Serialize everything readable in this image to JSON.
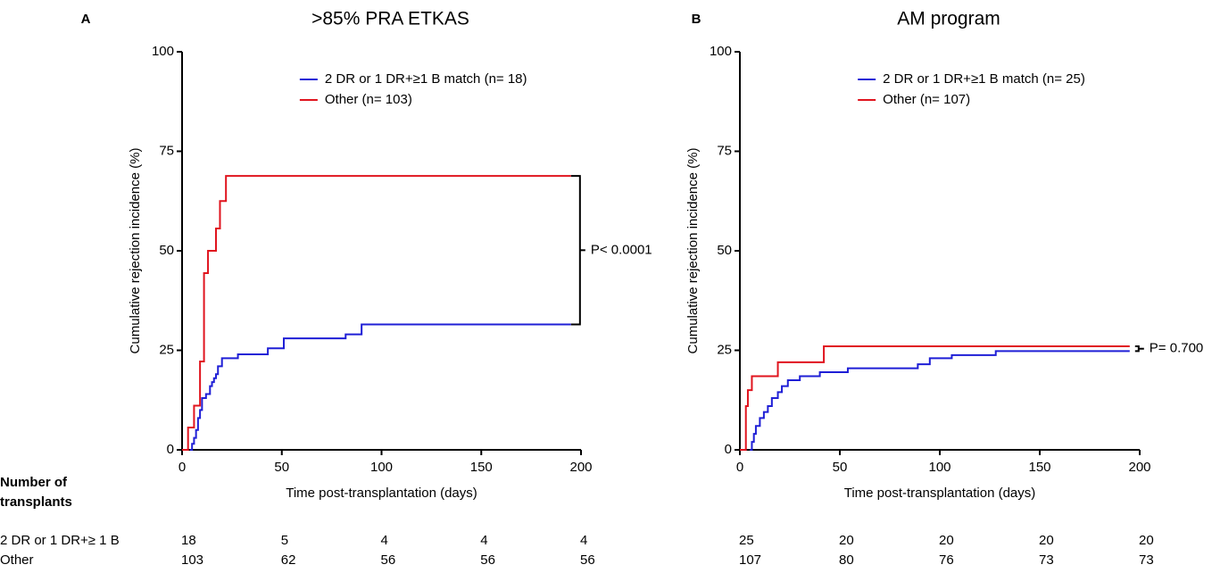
{
  "chart_data": [
    {
      "type": "line",
      "step": true,
      "panel": "A",
      "title": ">85% PRA ETKAS",
      "x_label": "Time post-transplantation (days)",
      "y_label": "Cumulative rejection incidence (%)",
      "xlim": [
        0,
        200
      ],
      "ylim": [
        0,
        100
      ],
      "xticks": [
        0,
        50,
        100,
        150,
        200
      ],
      "yticks": [
        0,
        25,
        50,
        75,
        100
      ],
      "legend": "upper-right",
      "series": [
        {
          "name": "2 DR or 1 DR+≥1 B match (n= 18)",
          "color": "#1f1fd6",
          "x": [
            4,
            5,
            6,
            7,
            8,
            9,
            10,
            12,
            14,
            15,
            16,
            17,
            18,
            20,
            28,
            43,
            51,
            82,
            90,
            195
          ],
          "values": [
            0,
            1.5,
            3,
            5,
            8,
            10,
            13,
            14,
            16,
            17,
            18,
            19,
            21,
            23,
            24,
            25.5,
            28,
            29,
            31.5,
            31.5
          ]
        },
        {
          "name": "Other (n= 103)",
          "color": "#e0141e",
          "x": [
            0,
            3,
            6,
            9,
            11,
            13,
            17,
            19,
            22,
            195
          ],
          "values": [
            0,
            5.6,
            11.1,
            22.2,
            44.4,
            50,
            55.6,
            62.5,
            68.8,
            68.8
          ]
        }
      ],
      "annotation": "P< 0.0001",
      "at_risk": [
        [
          18,
          5,
          4,
          4,
          4
        ],
        [
          103,
          62,
          56,
          56,
          56
        ]
      ]
    },
    {
      "type": "line",
      "step": true,
      "panel": "B",
      "title": "AM program",
      "x_label": "Time post-transplantation (days)",
      "y_label": "Cumulative rejection incidence (%)",
      "xlim": [
        0,
        200
      ],
      "ylim": [
        0,
        100
      ],
      "xticks": [
        0,
        50,
        100,
        150,
        200
      ],
      "yticks": [
        0,
        25,
        50,
        75,
        100
      ],
      "legend": "upper-right",
      "series": [
        {
          "name": "2 DR or 1 DR+≥1 B match (n= 25)",
          "color": "#1f1fd6",
          "x": [
            5,
            6,
            7,
            8,
            10,
            12,
            14,
            16,
            19,
            21,
            24,
            30,
            40,
            54,
            89,
            95,
            106,
            128,
            195
          ],
          "values": [
            0,
            2,
            4,
            6,
            8,
            9.5,
            11,
            13,
            14.5,
            16,
            17.5,
            18.5,
            19.5,
            20.5,
            21.5,
            23,
            23.8,
            24.8,
            24.8
          ]
        },
        {
          "name": "Other (n= 107)",
          "color": "#e0141e",
          "x": [
            0,
            3,
            4,
            6,
            19,
            42,
            195
          ],
          "values": [
            0,
            11,
            15,
            18.5,
            22,
            26,
            26
          ]
        }
      ],
      "annotation": "P= 0.700",
      "at_risk": [
        [
          25,
          20,
          20,
          20,
          20
        ],
        [
          107,
          80,
          76,
          73,
          73
        ]
      ]
    }
  ],
  "risk_table": {
    "title": "Number of transplants",
    "row_labels": [
      "2 DR or 1 DR+≥ 1 B",
      "Other"
    ]
  }
}
